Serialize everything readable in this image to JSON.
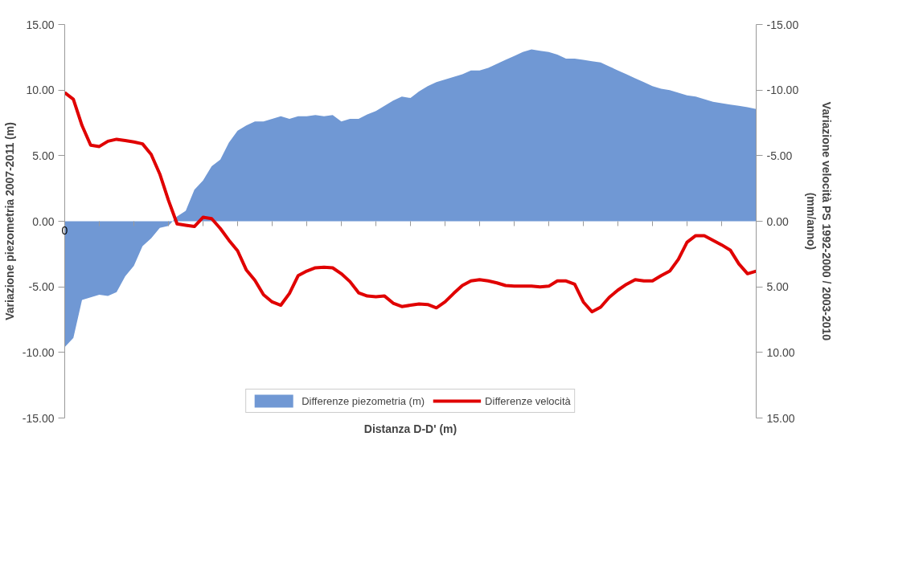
{
  "chart_data": {
    "type": "area",
    "xlabel": "Distanza D-D' (m)",
    "ylabel": "Variazione piezometria 2007-2011 (m)",
    "y2label": "Variazione velocità PS 1992-2000 / 2003-2010 (mm/anno)",
    "categories": [
      "0",
      null,
      null,
      null,
      null,
      null,
      null,
      null,
      null,
      null,
      null,
      null,
      null,
      null,
      null,
      null,
      null,
      null,
      null,
      null,
      null,
      null,
      null,
      null,
      null,
      null,
      null,
      null,
      null,
      null,
      null,
      null,
      null,
      null,
      null,
      null,
      null,
      null,
      null,
      null,
      null,
      null,
      null,
      null,
      null,
      null,
      null,
      null,
      null,
      null,
      null,
      null,
      null,
      null,
      null,
      null,
      null,
      null,
      null,
      null,
      null,
      null,
      null,
      null,
      null,
      null,
      null,
      null,
      null,
      null,
      null,
      null,
      null,
      null,
      null,
      null,
      null,
      null,
      null,
      null,
      null
    ],
    "series": [
      {
        "name": "Differenze piezometria (m)",
        "color": "#7098d4",
        "values": [
          -9.6,
          -8.9,
          -6.0,
          -5.8,
          -5.6,
          -5.7,
          -5.4,
          -4.2,
          -3.4,
          -1.9,
          -1.3,
          -0.5,
          -0.35,
          0.36,
          0.8,
          2.4,
          3.1,
          4.2,
          4.7,
          6.0,
          6.9,
          7.3,
          7.6,
          7.6,
          7.8,
          8.0,
          7.8,
          8.0,
          8.0,
          8.1,
          8.0,
          8.1,
          7.6,
          7.8,
          7.8,
          8.15,
          8.4,
          8.8,
          9.2,
          9.5,
          9.4,
          9.9,
          10.3,
          10.6,
          10.8,
          11.0,
          11.2,
          11.5,
          11.5,
          11.7,
          12.0,
          12.3,
          12.6,
          12.9,
          13.1,
          13.0,
          12.9,
          12.7,
          12.4,
          12.4,
          12.3,
          12.2,
          12.1,
          11.8,
          11.5,
          11.2,
          10.9,
          10.6,
          10.3,
          10.1,
          10.0,
          9.8,
          9.6,
          9.5,
          9.3,
          9.1,
          9.0,
          8.9,
          8.8,
          8.7,
          8.55
        ]
      },
      {
        "name": "Differenze velocità",
        "type": "line",
        "axis": "y2",
        "color": "#e00000",
        "values": [
          -9.8,
          -9.3,
          -7.3,
          -5.8,
          -5.7,
          -6.1,
          -6.25,
          -6.15,
          -6.05,
          -5.9,
          -5.1,
          -3.6,
          -1.6,
          0.2,
          0.3,
          0.4,
          -0.3,
          -0.2,
          0.55,
          1.45,
          2.25,
          3.7,
          4.5,
          5.6,
          6.15,
          6.4,
          5.5,
          4.15,
          3.8,
          3.55,
          3.5,
          3.55,
          4.0,
          4.6,
          5.45,
          5.7,
          5.75,
          5.7,
          6.25,
          6.5,
          6.4,
          6.3,
          6.35,
          6.6,
          6.15,
          5.5,
          4.9,
          4.55,
          4.45,
          4.55,
          4.7,
          4.9,
          4.95,
          4.95,
          4.95,
          5.0,
          4.95,
          4.55,
          4.55,
          4.8,
          6.15,
          6.9,
          6.55,
          5.8,
          5.25,
          4.8,
          4.45,
          4.55,
          4.55,
          4.15,
          3.8,
          2.9,
          1.6,
          1.1,
          1.1,
          1.45,
          1.8,
          2.2,
          3.25,
          4.0,
          3.8
        ]
      }
    ],
    "ylim": [
      -15,
      15
    ],
    "yticks": [
      {
        "value": -15,
        "label": "-15.00"
      },
      {
        "value": -10,
        "label": "-10.00"
      },
      {
        "value": -5,
        "label": "-5.00"
      },
      {
        "value": 0,
        "label": "0.00"
      },
      {
        "value": 5,
        "label": "5.00"
      },
      {
        "value": 10,
        "label": "10.00"
      },
      {
        "value": 15,
        "label": "15.00"
      }
    ],
    "y2lim": [
      15,
      -15
    ],
    "y2ticks": [
      {
        "value": -15,
        "label": "-15.00"
      },
      {
        "value": -10,
        "label": "-10.00"
      },
      {
        "value": -5,
        "label": "-5.00"
      },
      {
        "value": 0,
        "label": "0.00"
      },
      {
        "value": 5,
        "label": "5.00"
      },
      {
        "value": 10,
        "label": "10.00"
      },
      {
        "value": 15,
        "label": "15.00"
      }
    ],
    "grid": false,
    "legend": "bottom"
  }
}
